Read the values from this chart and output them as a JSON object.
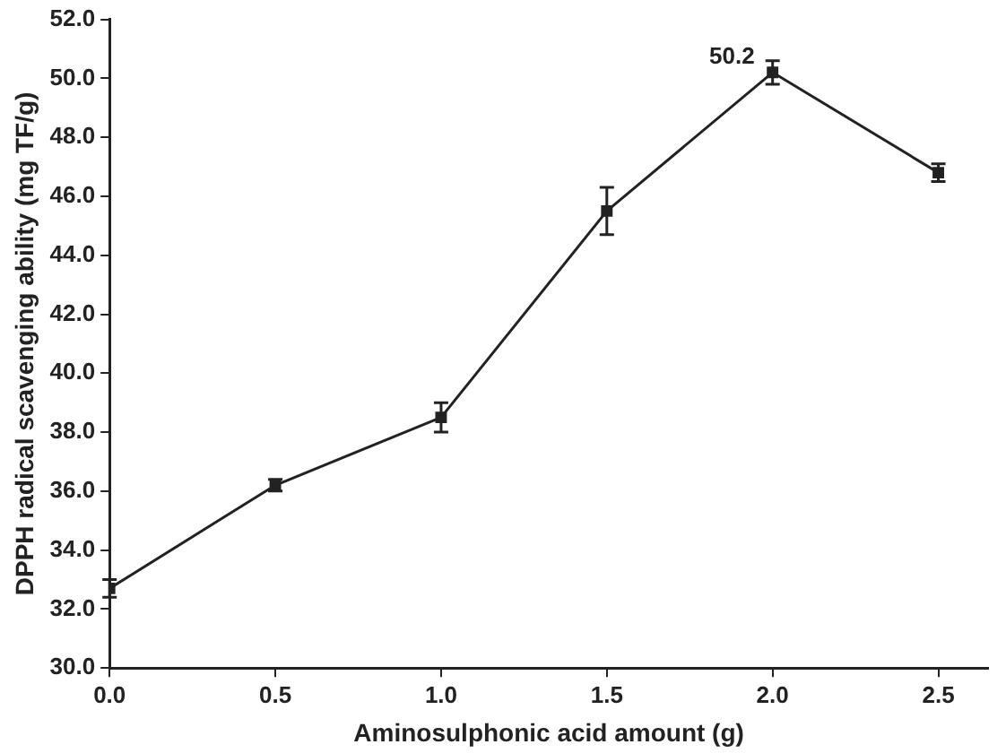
{
  "chart_data": {
    "type": "line",
    "xlabel": "Aminosulphonic acid amount (g)",
    "ylabel": "DPPH radical scavenging ability (mg TF/g)",
    "x": [
      0,
      0.5,
      1.0,
      1.5,
      2.0,
      2.5
    ],
    "series": [
      {
        "color": "#222222",
        "values": [
          32.7,
          36.2,
          38.5,
          45.5,
          50.2,
          46.8
        ],
        "errors": [
          0.3,
          0.2,
          0.5,
          0.8,
          0.4,
          0.3
        ]
      }
    ],
    "xlim": [
      0,
      2.65
    ],
    "xticks": [
      {
        "value": 0,
        "label": "0.0"
      },
      {
        "value": 0.5,
        "label": "0.5"
      },
      {
        "value": 1,
        "label": "1.0"
      },
      {
        "value": 1.5,
        "label": "1.5"
      },
      {
        "value": 2,
        "label": "2.0"
      },
      {
        "value": 2.5,
        "label": "2.5"
      }
    ],
    "ylim": [
      30,
      52
    ],
    "yticks": [
      {
        "value": 30,
        "label": "30.0"
      },
      {
        "value": 32,
        "label": "32.0"
      },
      {
        "value": 34,
        "label": "34.0"
      },
      {
        "value": 36,
        "label": "36.0"
      },
      {
        "value": 38,
        "label": "38.0"
      },
      {
        "value": 40,
        "label": "40.0"
      },
      {
        "value": 42,
        "label": "42.0"
      },
      {
        "value": 44,
        "label": "44.0"
      },
      {
        "value": 46,
        "label": "46.0"
      },
      {
        "value": 48,
        "label": "48.0"
      },
      {
        "value": 50,
        "label": "50.0"
      },
      {
        "value": 52,
        "label": "52.0"
      }
    ],
    "annotations": [
      {
        "text": "50.2",
        "x": 2.0,
        "y": 50.2
      }
    ],
    "marker": "square",
    "line_style": "solid",
    "grid": false,
    "legend": false
  }
}
